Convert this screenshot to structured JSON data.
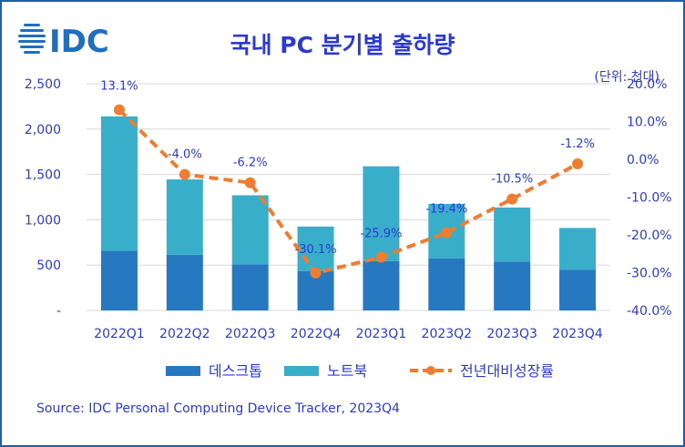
{
  "header": {
    "logo_text": "IDC",
    "title": "국내 PC 분기별 출하량",
    "unit_note": "(단위: 천대)"
  },
  "footer": {
    "source": "Source: IDC Personal Computing Device Tracker, 2023Q4"
  },
  "chart_data": {
    "type": "bar",
    "stacked": true,
    "categories": [
      "2022Q1",
      "2022Q2",
      "2022Q3",
      "2022Q4",
      "2023Q1",
      "2023Q2",
      "2023Q3",
      "2023Q4"
    ],
    "series": [
      {
        "name": "데스크톱",
        "values": [
          660,
          615,
          510,
          435,
          545,
          575,
          540,
          450
        ],
        "color": "#2679c0",
        "axis": "left"
      },
      {
        "name": "노트북",
        "values": [
          1480,
          830,
          760,
          490,
          1045,
          600,
          595,
          460
        ],
        "color": "#38aecb",
        "axis": "left"
      },
      {
        "name": "전년대비성장률",
        "type": "line",
        "axis": "right",
        "values": [
          13.1,
          -4.0,
          -6.2,
          -30.1,
          -25.9,
          -19.4,
          -10.5,
          -1.2
        ],
        "color": "#ee7d31"
      }
    ],
    "data_labels": [
      "13.1%",
      "-4.0%",
      "-6.2%",
      "-30.1%",
      "-25.9%",
      "-19.4%",
      "-10.5%",
      "-1.2%"
    ],
    "y_left": {
      "ylim": [
        0,
        2500
      ],
      "ticks": [
        "-",
        "500",
        "1,000",
        "1,500",
        "2,000",
        "2,500"
      ]
    },
    "y_right": {
      "ylim": [
        -40,
        20
      ],
      "ticks": [
        "-40.0%",
        "-30.0%",
        "-20.0%",
        "-10.0%",
        "0.0%",
        "10.0%",
        "20.0%"
      ]
    },
    "grid": true,
    "legend_position": "bottom"
  }
}
